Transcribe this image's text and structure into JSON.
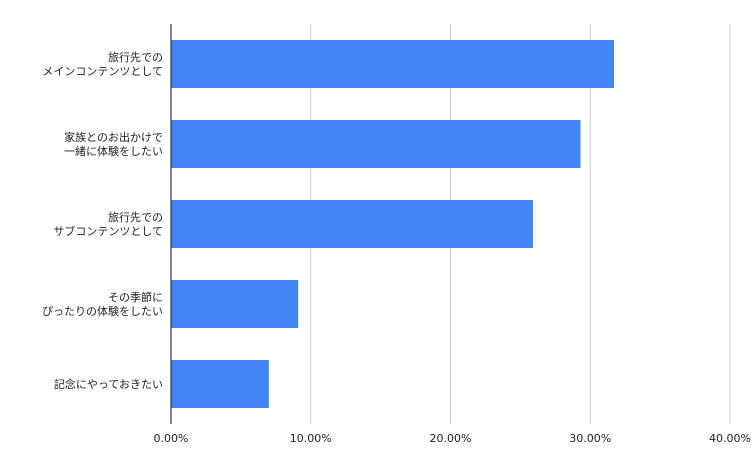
{
  "chart_data": {
    "type": "bar",
    "orientation": "horizontal",
    "categories": [
      [
        "旅行先での",
        "メインコンテンツとして"
      ],
      [
        "家族とのお出かけで",
        "一緒に体験をしたい"
      ],
      [
        "旅行先での",
        "サブコンテンツとして"
      ],
      [
        "その季節に",
        "ぴったりの体験をしたい"
      ],
      [
        "記念にやっておきたい"
      ]
    ],
    "values": [
      31.7,
      29.3,
      25.9,
      9.1,
      7.0
    ],
    "xlim": [
      0,
      40
    ],
    "xticks": [
      0,
      10,
      20,
      30,
      40
    ],
    "xtick_labels": [
      "0.00%",
      "10.00%",
      "20.00%",
      "30.00%",
      "40.00%"
    ],
    "bar_color": "#4285f4",
    "grid": true,
    "grid_color": "#cccccc",
    "axis_color": "#333333"
  }
}
